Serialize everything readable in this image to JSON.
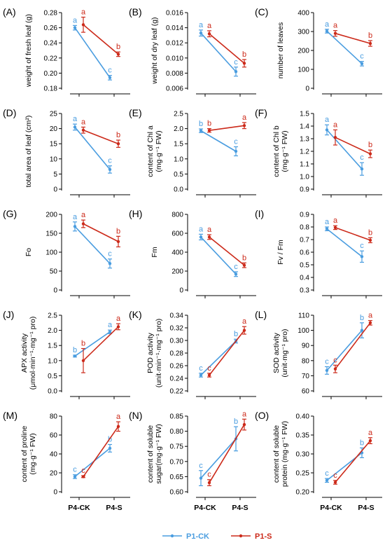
{
  "colors": {
    "ck": "#4a9de0",
    "s": "#cc2a1a",
    "axis": "#000000"
  },
  "categories": [
    "P4-CK",
    "P4-S"
  ],
  "legend": [
    {
      "name": "P1-CK",
      "color": "#4a9de0"
    },
    {
      "name": "P1-S",
      "color": "#cc2a1a"
    }
  ],
  "chart_data": [
    {
      "id": "A",
      "panel_label": "(A)",
      "type": "line",
      "ylabel": [
        "weight of fresh leaf (g)"
      ],
      "ylim": [
        0.18,
        0.28
      ],
      "yticks": [
        "0.18",
        "0.20",
        "0.22",
        "0.24",
        "0.26",
        "0.28"
      ],
      "xticklabels": false,
      "series": [
        {
          "name": "P1-CK",
          "values": [
            0.26,
            0.194
          ],
          "errors": [
            0.003,
            0.003
          ],
          "letters": [
            "a",
            "c"
          ]
        },
        {
          "name": "P1-S",
          "values": [
            0.264,
            0.225
          ],
          "errors": [
            0.01,
            0.003
          ],
          "letters": [
            "a",
            "b"
          ]
        }
      ]
    },
    {
      "id": "B",
      "panel_label": "(B)",
      "type": "line",
      "ylabel": [
        "weight of dry leaf (g)"
      ],
      "ylim": [
        0.006,
        0.016
      ],
      "yticks": [
        "0.006",
        "0.008",
        "0.010",
        "0.012",
        "0.014",
        "0.016"
      ],
      "xticklabels": false,
      "series": [
        {
          "name": "P1-CK",
          "values": [
            0.0133,
            0.0082
          ],
          "errors": [
            0.0004,
            0.0006
          ],
          "letters": [
            "a",
            "c"
          ]
        },
        {
          "name": "P1-S",
          "values": [
            0.0132,
            0.0093
          ],
          "errors": [
            0.0004,
            0.0005
          ],
          "letters": [
            "a",
            "b"
          ]
        }
      ]
    },
    {
      "id": "C",
      "panel_label": "(C)",
      "type": "line",
      "ylabel": [
        "number of leaves"
      ],
      "ylim": [
        0,
        400
      ],
      "yticks": [
        "0",
        "100",
        "200",
        "300",
        "400"
      ],
      "xticklabels": false,
      "series": [
        {
          "name": "P1-CK",
          "values": [
            302,
            130
          ],
          "errors": [
            10,
            12
          ],
          "letters": [
            "a",
            "c"
          ]
        },
        {
          "name": "P1-S",
          "values": [
            290,
            237
          ],
          "errors": [
            15,
            15
          ],
          "letters": [
            "a",
            "b"
          ]
        }
      ]
    },
    {
      "id": "D",
      "panel_label": "(D)",
      "type": "line",
      "ylabel": [
        "total area of leaf (cm²)"
      ],
      "ylim": [
        0,
        25
      ],
      "yticks": [
        "0",
        "5",
        "10",
        "15",
        "20",
        "25"
      ],
      "xticklabels": false,
      "series": [
        {
          "name": "P1-CK",
          "values": [
            20.5,
            6.5
          ],
          "errors": [
            1.0,
            1.2
          ],
          "letters": [
            "a",
            "c"
          ]
        },
        {
          "name": "P1-S",
          "values": [
            19.5,
            15.0
          ],
          "errors": [
            1.0,
            1.2
          ],
          "letters": [
            "a",
            "b"
          ]
        }
      ]
    },
    {
      "id": "E",
      "panel_label": "(E)",
      "type": "line",
      "ylabel": [
        "content of Chl a",
        "(mg·g⁻¹ FW)"
      ],
      "ylim": [
        0,
        2.5
      ],
      "yticks": [
        "0.0",
        "0.5",
        "1.0",
        "1.5",
        "2.0",
        "2.5"
      ],
      "xticklabels": false,
      "series": [
        {
          "name": "P1-CK",
          "values": [
            1.93,
            1.25
          ],
          "errors": [
            0.06,
            0.15
          ],
          "letters": [
            "b",
            "c"
          ]
        },
        {
          "name": "P1-S",
          "values": [
            1.94,
            2.1
          ],
          "errors": [
            0.06,
            0.1
          ],
          "letters": [
            "b",
            "a"
          ]
        }
      ]
    },
    {
      "id": "F",
      "panel_label": "(F)",
      "type": "line",
      "ylabel": [
        "content of Chl b",
        "(mg·g⁻¹ FW)"
      ],
      "ylim": [
        0.9,
        1.5
      ],
      "yticks": [
        "0.9",
        "1.0",
        "1.1",
        "1.2",
        "1.3",
        "1.4",
        "1.5"
      ],
      "xticklabels": false,
      "series": [
        {
          "name": "P1-CK",
          "values": [
            1.37,
            1.06
          ],
          "errors": [
            0.04,
            0.05
          ],
          "letters": [
            "a",
            "c"
          ]
        },
        {
          "name": "P1-S",
          "values": [
            1.31,
            1.18
          ],
          "errors": [
            0.06,
            0.03
          ],
          "letters": [
            "a",
            "b"
          ]
        }
      ]
    },
    {
      "id": "G",
      "panel_label": "(G)",
      "type": "line",
      "ylabel": [
        "Fo"
      ],
      "ylim": [
        0,
        200
      ],
      "yticks": [
        "0",
        "50",
        "100",
        "150",
        "200"
      ],
      "xticklabels": false,
      "series": [
        {
          "name": "P1-CK",
          "values": [
            168,
            70
          ],
          "errors": [
            12,
            12
          ],
          "letters": [
            "a",
            "c"
          ]
        },
        {
          "name": "P1-S",
          "values": [
            175,
            128
          ],
          "errors": [
            10,
            14
          ],
          "letters": [
            "a",
            "b"
          ]
        }
      ]
    },
    {
      "id": "H",
      "panel_label": "(H)",
      "type": "line",
      "ylabel": [
        "Fm"
      ],
      "ylim": [
        0,
        800
      ],
      "yticks": [
        "0",
        "200",
        "400",
        "600",
        "800"
      ],
      "xticklabels": false,
      "series": [
        {
          "name": "P1-CK",
          "values": [
            560,
            168
          ],
          "errors": [
            30,
            25
          ],
          "letters": [
            "a",
            "c"
          ]
        },
        {
          "name": "P1-S",
          "values": [
            560,
            262
          ],
          "errors": [
            25,
            25
          ],
          "letters": [
            "a",
            "b"
          ]
        }
      ]
    },
    {
      "id": "I",
      "panel_label": "(I)",
      "type": "line",
      "ylabel": [
        "Fv / Fm"
      ],
      "ylim": [
        0.3,
        0.9
      ],
      "yticks": [
        "0.3",
        "0.4",
        "0.5",
        "0.6",
        "0.7",
        "0.8",
        "0.9"
      ],
      "xticklabels": false,
      "series": [
        {
          "name": "P1-CK",
          "values": [
            0.785,
            0.565
          ],
          "errors": [
            0.015,
            0.045
          ],
          "letters": [
            "a",
            "c"
          ]
        },
        {
          "name": "P1-S",
          "values": [
            0.795,
            0.695
          ],
          "errors": [
            0.015,
            0.02
          ],
          "letters": [
            "a",
            "b"
          ]
        }
      ]
    },
    {
      "id": "J",
      "panel_label": "(J)",
      "type": "line",
      "ylabel": [
        "APX activity",
        "(μmol·min⁻¹·mg⁻¹ pro)"
      ],
      "ylim": [
        0,
        2.5
      ],
      "yticks": [
        "0.0",
        "0.5",
        "1.0",
        "1.5",
        "2.0",
        "2.5"
      ],
      "xticklabels": false,
      "series": [
        {
          "name": "P1-CK",
          "values": [
            1.15,
            1.95
          ],
          "errors": [
            0.03,
            0.06
          ],
          "letters": [
            "b",
            "a"
          ]
        },
        {
          "name": "P1-S",
          "values": [
            1.0,
            2.12
          ],
          "errors": [
            0.4,
            0.1
          ],
          "letters": [
            "b",
            "a"
          ]
        }
      ]
    },
    {
      "id": "K",
      "panel_label": "(K)",
      "type": "line",
      "ylabel": [
        "POD activity",
        "(unit·min⁻¹·mg⁻¹ pro)"
      ],
      "ylim": [
        0.22,
        0.34
      ],
      "yticks": [
        "0.22",
        "0.24",
        "0.26",
        "0.28",
        "0.30",
        "0.32",
        "0.34"
      ],
      "xticklabels": false,
      "series": [
        {
          "name": "P1-CK",
          "values": [
            0.245,
            0.299
          ],
          "errors": [
            0.003,
            0.003
          ],
          "letters": [
            "c",
            "b"
          ]
        },
        {
          "name": "P1-S",
          "values": [
            0.245,
            0.316
          ],
          "errors": [
            0.003,
            0.006
          ],
          "letters": [
            "c",
            "a"
          ]
        }
      ]
    },
    {
      "id": "L",
      "panel_label": "(L)",
      "type": "line",
      "ylabel": [
        "SOD activity",
        "(unit·mg⁻¹ pro)"
      ],
      "ylim": [
        60,
        110
      ],
      "yticks": [
        "60",
        "70",
        "80",
        "90",
        "100",
        "110"
      ],
      "xticklabels": false,
      "series": [
        {
          "name": "P1-CK",
          "values": [
            73.5,
            100
          ],
          "errors": [
            2.5,
            5
          ],
          "letters": [
            "c",
            "b"
          ]
        },
        {
          "name": "P1-S",
          "values": [
            74.5,
            105
          ],
          "errors": [
            2.5,
            1.5
          ],
          "letters": [
            "c",
            "a"
          ]
        }
      ]
    },
    {
      "id": "M",
      "panel_label": "(M)",
      "type": "line",
      "ylabel": [
        "content of proline",
        "(mg·g⁻¹ FW)"
      ],
      "ylim": [
        0,
        80
      ],
      "yticks": [
        "0",
        "20",
        "40",
        "60",
        "80"
      ],
      "xticklabels": true,
      "series": [
        {
          "name": "P1-CK",
          "values": [
            16,
            46
          ],
          "errors": [
            2,
            4
          ],
          "letters": [
            "c",
            "b"
          ]
        },
        {
          "name": "P1-S",
          "values": [
            16,
            69
          ],
          "errors": [
            1,
            5
          ],
          "letters": [
            "c",
            "a"
          ]
        }
      ]
    },
    {
      "id": "N",
      "panel_label": "(N)",
      "type": "line",
      "ylabel": [
        "content of soluble",
        "sugar(mg·g⁻¹ FW)"
      ],
      "ylim": [
        0.6,
        0.85
      ],
      "yticks": [
        "0.60",
        "0.65",
        "0.70",
        "0.75",
        "0.80",
        "0.85"
      ],
      "xticklabels": true,
      "series": [
        {
          "name": "P1-CK",
          "values": [
            0.645,
            0.775
          ],
          "errors": [
            0.025,
            0.04
          ],
          "letters": [
            "c",
            "b"
          ]
        },
        {
          "name": "P1-S",
          "values": [
            0.63,
            0.822
          ],
          "errors": [
            0.01,
            0.018
          ],
          "letters": [
            "c",
            "a"
          ]
        }
      ]
    },
    {
      "id": "O",
      "panel_label": "(O)",
      "type": "line",
      "ylabel": [
        "content of soluble",
        "protein (mg·g⁻¹ FW)"
      ],
      "ylim": [
        0.2,
        0.4
      ],
      "yticks": [
        "0.20",
        "0.25",
        "0.30",
        "0.35",
        "0.40"
      ],
      "xticklabels": true,
      "series": [
        {
          "name": "P1-CK",
          "values": [
            0.23,
            0.303
          ],
          "errors": [
            0.005,
            0.013
          ],
          "letters": [
            "c",
            "b"
          ]
        },
        {
          "name": "P1-S",
          "values": [
            0.225,
            0.335
          ],
          "errors": [
            0.005,
            0.008
          ],
          "letters": [
            "c",
            "a"
          ]
        }
      ]
    }
  ]
}
